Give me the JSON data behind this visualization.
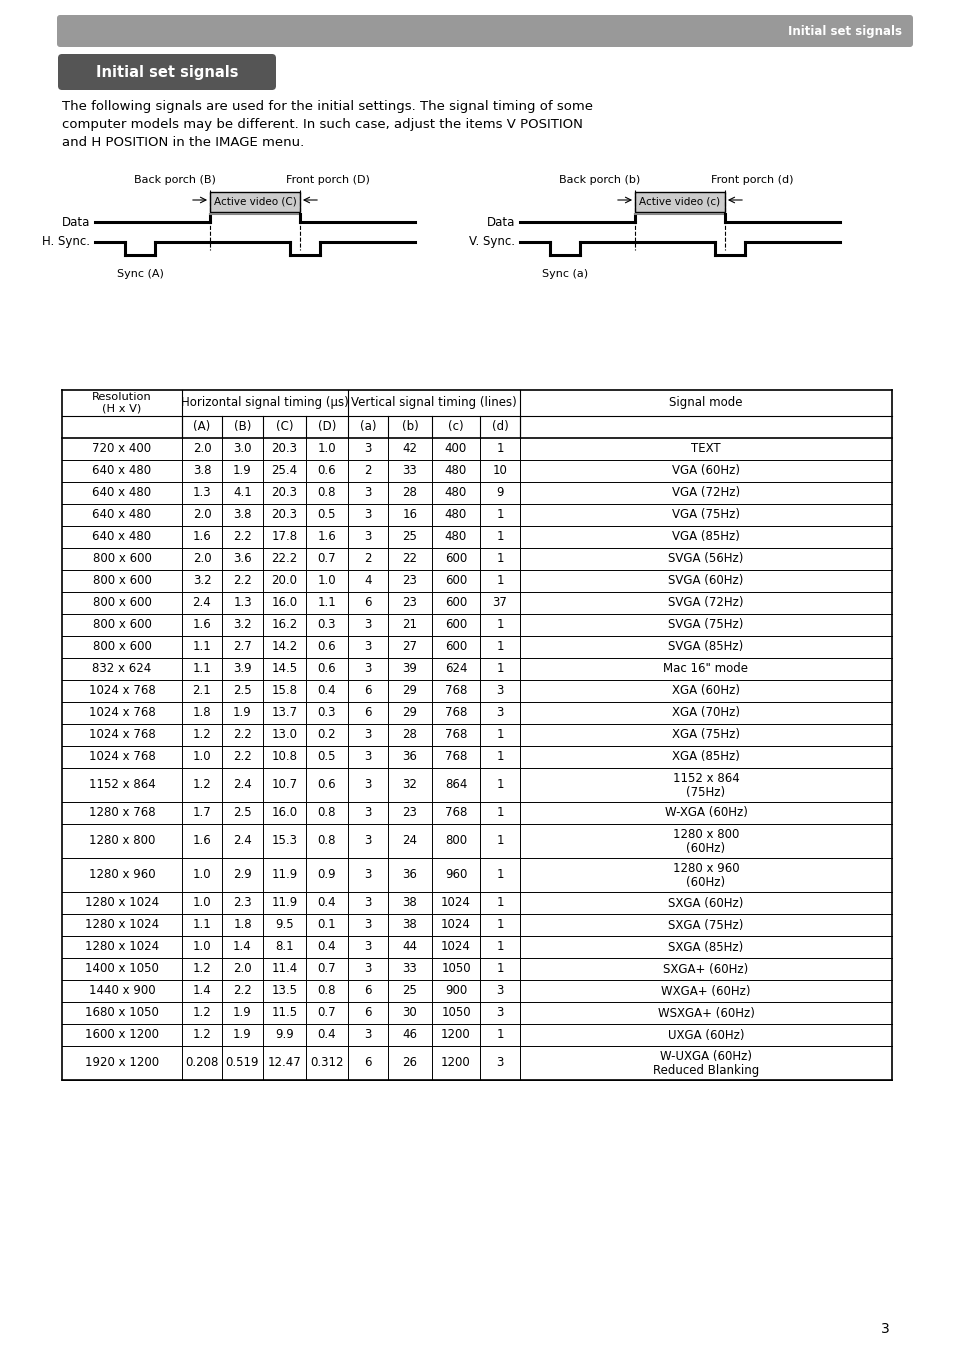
{
  "page_title_bar": "Initial set signals",
  "section_title": "Initial set signals",
  "body_text_lines": [
    "The following signals are used for the initial settings. The signal timing of some",
    "computer models may be different. In such case, adjust the items V POSITION",
    "and H POSITION in the IMAGE menu."
  ],
  "table_data": [
    [
      "720 x 400",
      "2.0",
      "3.0",
      "20.3",
      "1.0",
      "3",
      "42",
      "400",
      "1",
      "TEXT"
    ],
    [
      "640 x 480",
      "3.8",
      "1.9",
      "25.4",
      "0.6",
      "2",
      "33",
      "480",
      "10",
      "VGA (60Hz)"
    ],
    [
      "640 x 480",
      "1.3",
      "4.1",
      "20.3",
      "0.8",
      "3",
      "28",
      "480",
      "9",
      "VGA (72Hz)"
    ],
    [
      "640 x 480",
      "2.0",
      "3.8",
      "20.3",
      "0.5",
      "3",
      "16",
      "480",
      "1",
      "VGA (75Hz)"
    ],
    [
      "640 x 480",
      "1.6",
      "2.2",
      "17.8",
      "1.6",
      "3",
      "25",
      "480",
      "1",
      "VGA (85Hz)"
    ],
    [
      "800 x 600",
      "2.0",
      "3.6",
      "22.2",
      "0.7",
      "2",
      "22",
      "600",
      "1",
      "SVGA (56Hz)"
    ],
    [
      "800 x 600",
      "3.2",
      "2.2",
      "20.0",
      "1.0",
      "4",
      "23",
      "600",
      "1",
      "SVGA (60Hz)"
    ],
    [
      "800 x 600",
      "2.4",
      "1.3",
      "16.0",
      "1.1",
      "6",
      "23",
      "600",
      "37",
      "SVGA (72Hz)"
    ],
    [
      "800 x 600",
      "1.6",
      "3.2",
      "16.2",
      "0.3",
      "3",
      "21",
      "600",
      "1",
      "SVGA (75Hz)"
    ],
    [
      "800 x 600",
      "1.1",
      "2.7",
      "14.2",
      "0.6",
      "3",
      "27",
      "600",
      "1",
      "SVGA (85Hz)"
    ],
    [
      "832 x 624",
      "1.1",
      "3.9",
      "14.5",
      "0.6",
      "3",
      "39",
      "624",
      "1",
      "Mac 16\" mode"
    ],
    [
      "1024 x 768",
      "2.1",
      "2.5",
      "15.8",
      "0.4",
      "6",
      "29",
      "768",
      "3",
      "XGA (60Hz)"
    ],
    [
      "1024 x 768",
      "1.8",
      "1.9",
      "13.7",
      "0.3",
      "6",
      "29",
      "768",
      "3",
      "XGA (70Hz)"
    ],
    [
      "1024 x 768",
      "1.2",
      "2.2",
      "13.0",
      "0.2",
      "3",
      "28",
      "768",
      "1",
      "XGA (75Hz)"
    ],
    [
      "1024 x 768",
      "1.0",
      "2.2",
      "10.8",
      "0.5",
      "3",
      "36",
      "768",
      "1",
      "XGA (85Hz)"
    ],
    [
      "1152 x 864",
      "1.2",
      "2.4",
      "10.7",
      "0.6",
      "3",
      "32",
      "864",
      "1",
      "1152 x 864\n(75Hz)"
    ],
    [
      "1280 x 768",
      "1.7",
      "2.5",
      "16.0",
      "0.8",
      "3",
      "23",
      "768",
      "1",
      "W-XGA (60Hz)"
    ],
    [
      "1280 x 800",
      "1.6",
      "2.4",
      "15.3",
      "0.8",
      "3",
      "24",
      "800",
      "1",
      "1280 x 800\n(60Hz)"
    ],
    [
      "1280 x 960",
      "1.0",
      "2.9",
      "11.9",
      "0.9",
      "3",
      "36",
      "960",
      "1",
      "1280 x 960\n(60Hz)"
    ],
    [
      "1280 x 1024",
      "1.0",
      "2.3",
      "11.9",
      "0.4",
      "3",
      "38",
      "1024",
      "1",
      "SXGA (60Hz)"
    ],
    [
      "1280 x 1024",
      "1.1",
      "1.8",
      "9.5",
      "0.1",
      "3",
      "38",
      "1024",
      "1",
      "SXGA (75Hz)"
    ],
    [
      "1280 x 1024",
      "1.0",
      "1.4",
      "8.1",
      "0.4",
      "3",
      "44",
      "1024",
      "1",
      "SXGA (85Hz)"
    ],
    [
      "1400 x 1050",
      "1.2",
      "2.0",
      "11.4",
      "0.7",
      "3",
      "33",
      "1050",
      "1",
      "SXGA+ (60Hz)"
    ],
    [
      "1440 x 900",
      "1.4",
      "2.2",
      "13.5",
      "0.8",
      "6",
      "25",
      "900",
      "3",
      "WXGA+ (60Hz)"
    ],
    [
      "1680 x 1050",
      "1.2",
      "1.9",
      "11.5",
      "0.7",
      "6",
      "30",
      "1050",
      "3",
      "WSXGA+ (60Hz)"
    ],
    [
      "1600 x 1200",
      "1.2",
      "1.9",
      "9.9",
      "0.4",
      "3",
      "46",
      "1200",
      "1",
      "UXGA (60Hz)"
    ],
    [
      "1920 x 1200",
      "0.208",
      "0.519",
      "12.47",
      "0.312",
      "6",
      "26",
      "1200",
      "3",
      "W-UXGA (60Hz)\nReduced Blanking"
    ]
  ],
  "page_number": "3",
  "bg_color": "#ffffff",
  "header_bar_color": "#999999",
  "section_title_bg": "#555555"
}
